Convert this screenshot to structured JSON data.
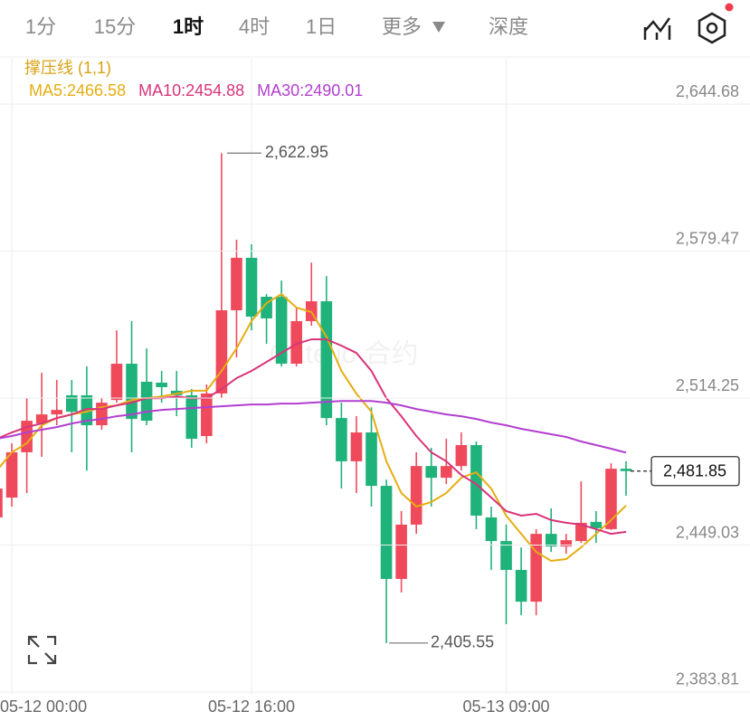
{
  "tabs": [
    {
      "label": "1分"
    },
    {
      "label": "15分"
    },
    {
      "label": "1时",
      "active": true
    },
    {
      "label": "4时"
    },
    {
      "label": "1日"
    },
    {
      "label": "更多"
    },
    {
      "label": "深度"
    }
  ],
  "chart_data": {
    "type": "candlestick",
    "indicator_label": "撑压线 (1,1)",
    "watermark": "Gate.io 合约",
    "categories": [
      null,
      "05-12 00:00",
      null,
      null,
      null,
      null,
      null,
      null,
      null,
      null,
      null,
      null,
      null,
      null,
      null,
      null,
      null,
      "05-12 16:00",
      null,
      null,
      null,
      null,
      null,
      null,
      null,
      null,
      null,
      null,
      null,
      null,
      null,
      null,
      null,
      null,
      "05-13 09:00",
      null,
      null,
      null,
      null,
      null,
      null,
      null,
      null
    ],
    "candles": {
      "up_color": "#ef4a5c",
      "down_color": "#1fb27a",
      "open": [
        2461.3,
        2470.1,
        2490.2,
        2503.0,
        2507.0,
        2515.5,
        2515.5,
        2502.2,
        2513.4,
        2529.5,
        2521.5,
        2521.1,
        2517.5,
        2515.5,
        2497.4,
        2516.3,
        2553.2,
        2576.5,
        2559.2,
        2559.2,
        2529.5,
        2548.4,
        2557.2,
        2505.4,
        2486.2,
        2499.0,
        2475.3,
        2434.0,
        2458.1,
        2484.1,
        2478.9,
        2484.1,
        2493.4,
        2461.3,
        2450.8,
        2438.0,
        2423.9,
        2454.0,
        2448.4,
        2450.8,
        2459.3,
        2456.1,
        2482.9
      ],
      "high": [
        2478.1,
        2494.2,
        2514.2,
        2525.5,
        2522.3,
        2522.3,
        2528.3,
        2514.2,
        2544.3,
        2548.4,
        2536.3,
        2526.3,
        2526.3,
        2518.3,
        2520.3,
        2622.95,
        2584.5,
        2582.5,
        2560.4,
        2566.4,
        2554.4,
        2574.4,
        2568.4,
        2512.2,
        2506.2,
        2510.2,
        2478.1,
        2464.1,
        2490.2,
        2492.2,
        2496.2,
        2499.0,
        2495.0,
        2466.1,
        2458.1,
        2448.0,
        2456.1,
        2465.3,
        2454.0,
        2477.3,
        2464.1,
        2485.3,
        2486.2
      ],
      "low": [
        2460.1,
        2466.1,
        2472.1,
        2488.2,
        2502.2,
        2490.2,
        2482.1,
        2500.2,
        2512.2,
        2490.2,
        2502.2,
        2512.2,
        2506.2,
        2492.2,
        2494.2,
        2514.2,
        2532.3,
        2544.3,
        2538.3,
        2528.3,
        2528.3,
        2546.4,
        2502.2,
        2474.1,
        2472.1,
        2466.1,
        2405.55,
        2428.0,
        2454.0,
        2466.1,
        2476.1,
        2482.1,
        2456.1,
        2438.0,
        2413.9,
        2417.9,
        2417.9,
        2446.0,
        2445.2,
        2450.0,
        2450.0,
        2455.7,
        2470.9
      ],
      "close": [
        2474.1,
        2490.2,
        2504.2,
        2507.0,
        2509.0,
        2508.2,
        2502.2,
        2512.2,
        2529.5,
        2505.0,
        2504.2,
        2519.1,
        2515.5,
        2496.2,
        2516.3,
        2553.2,
        2576.5,
        2550.4,
        2549.6,
        2529.5,
        2548.4,
        2557.2,
        2505.4,
        2486.2,
        2499.0,
        2475.3,
        2434.0,
        2458.1,
        2484.1,
        2478.9,
        2484.1,
        2493.4,
        2462.1,
        2450.8,
        2438.0,
        2423.9,
        2454.0,
        2448.4,
        2451.2,
        2458.9,
        2456.5,
        2482.9,
        2481.85
      ]
    },
    "series": [
      {
        "name": "MA5:2466.58",
        "color": "#e6ad12",
        "values": [
          2482.1,
          2490.2,
          2494.2,
          2502.2,
          2505.4,
          2507.0,
          2508.2,
          2510.2,
          2511.0,
          2513.4,
          2514.2,
          2515.0,
          2516.2,
          2517.5,
          2517.5,
          2526.3,
          2536.3,
          2548.4,
          2556.4,
          2560.4,
          2554.4,
          2552.4,
          2541.5,
          2526.3,
          2516.2,
          2508.2,
          2486.2,
          2472.1,
          2466.1,
          2468.1,
          2472.1,
          2478.9,
          2481.3,
          2474.1,
          2462.1,
          2454.0,
          2446.0,
          2442.0,
          2442.8,
          2448.0,
          2454.0,
          2460.1,
          2466.58
        ]
      },
      {
        "name": "MA10:2454.88",
        "color": "#d8347a",
        "values": [
          2496.2,
          2499.0,
          2501.4,
          2503.0,
          2505.4,
          2507.0,
          2509.4,
          2509.4,
          2511.0,
          2512.2,
          2514.2,
          2514.2,
          2515.0,
          2514.2,
          2514.2,
          2518.3,
          2523.1,
          2526.3,
          2530.3,
          2534.3,
          2538.3,
          2540.3,
          2540.3,
          2537.5,
          2534.3,
          2526.3,
          2514.2,
          2506.2,
          2497.4,
          2490.2,
          2486.2,
          2480.1,
          2476.1,
          2470.1,
          2464.1,
          2462.1,
          2462.9,
          2460.1,
          2458.9,
          2458.1,
          2456.1,
          2454.0,
          2454.88
        ]
      },
      {
        "name": "MA30:2490.01",
        "color": "#b23fcf",
        "values": [
          2496.2,
          2497.4,
          2499.0,
          2500.2,
          2501.4,
          2503.0,
          2504.2,
          2505.0,
          2506.2,
          2507.0,
          2508.2,
          2509.0,
          2509.4,
          2509.8,
          2510.2,
          2510.6,
          2511.0,
          2511.4,
          2511.4,
          2511.8,
          2511.8,
          2512.2,
          2512.6,
          2513.0,
          2513.0,
          2513.0,
          2512.2,
          2511.0,
          2509.4,
          2508.2,
          2507.0,
          2506.2,
          2505.0,
          2503.4,
          2502.2,
          2500.6,
          2499.4,
          2498.2,
          2497.0,
          2495.0,
          2493.4,
          2491.8,
          2490.01
        ]
      }
    ],
    "ylim": [
      2382.6,
      2664.8
    ],
    "yticks": [
      {
        "value": 2383.81,
        "label": "2,383.81"
      },
      {
        "value": 2449.03,
        "label": "2,449.03"
      },
      {
        "value": 2514.25,
        "label": "2,514.25"
      },
      {
        "value": 2579.47,
        "label": "2,579.47"
      },
      {
        "value": 2644.68,
        "label": "2,644.68"
      }
    ],
    "grid": true,
    "high_label": "2,622.95",
    "low_label": "2,405.55",
    "last_label": "2,481.85"
  }
}
